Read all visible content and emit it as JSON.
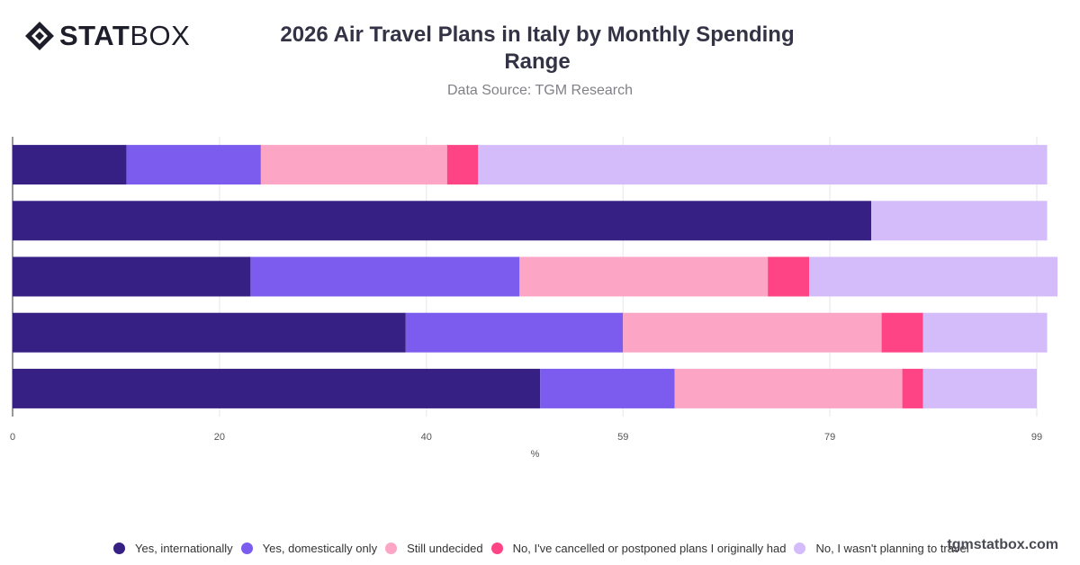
{
  "brand": {
    "logo_strong": "STAT",
    "logo_light": "BOX",
    "watermark": "tgmstatbox.com"
  },
  "header": {
    "title": "2026 Air Travel Plans in Italy by Monthly Spending Range",
    "subtitle": "Data Source: TGM Research"
  },
  "chart_data": {
    "type": "bar",
    "orientation": "horizontal",
    "stacked": true,
    "title": "2026 Air Travel Plans in Italy by Monthly Spending Range",
    "subtitle": "Data Source: TGM Research",
    "xlabel": "%",
    "ylabel": "",
    "xlim": [
      0,
      101
    ],
    "x_ticks": [
      "0",
      "20",
      "40",
      "59",
      "79",
      "99"
    ],
    "x_tick_values": [
      0,
      20,
      40,
      59,
      79,
      99
    ],
    "categories": [
      "",
      "",
      "",
      "",
      ""
    ],
    "grid": true,
    "legend_position": "bottom",
    "series": [
      {
        "name": "Yes, internationally",
        "color": "#372084",
        "values": [
          11,
          83,
          23,
          38,
          51
        ]
      },
      {
        "name": "Yes, domestically only",
        "color": "#7b5cee",
        "values": [
          13,
          0,
          26,
          21,
          13
        ]
      },
      {
        "name": "Still undecided",
        "color": "#fca5c5",
        "values": [
          18,
          0,
          24,
          25,
          22
        ]
      },
      {
        "name": "No, I've cancelled or postponed plans I originally had",
        "color": "#ff4485",
        "values": [
          3,
          0,
          4,
          4,
          2
        ]
      },
      {
        "name": "No, I wasn't planning to travel",
        "color": "#d4bcfa",
        "values": [
          55,
          17,
          24,
          12,
          11
        ]
      }
    ]
  }
}
